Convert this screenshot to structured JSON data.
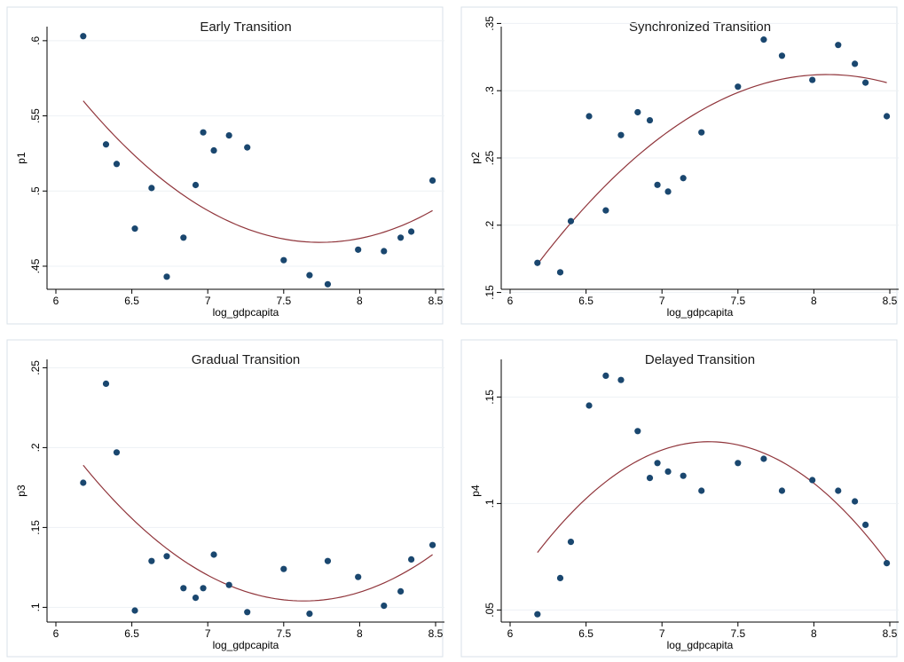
{
  "chart_data": [
    {
      "type": "scatter",
      "title": "Early Transition",
      "xlabel": "log_gdpcapita",
      "ylabel": "p1",
      "xlim": [
        6,
        8.5
      ],
      "ylim": [
        0.437,
        0.607
      ],
      "x_ticks": [
        6,
        6.5,
        7,
        7.5,
        8,
        8.5
      ],
      "x_tick_labels": [
        "6",
        "6.5",
        "7",
        "7.5",
        "8",
        "8.5"
      ],
      "y_ticks": [
        0.45,
        0.5,
        0.55,
        0.6
      ],
      "y_tick_labels": [
        ".45",
        ".5",
        ".55",
        ".6"
      ],
      "grid": true,
      "colors": {
        "points": "#1a476f",
        "fit": "#90353b"
      },
      "points": [
        {
          "x": 6.18,
          "y": 0.603
        },
        {
          "x": 6.33,
          "y": 0.531
        },
        {
          "x": 6.4,
          "y": 0.518
        },
        {
          "x": 6.52,
          "y": 0.475
        },
        {
          "x": 6.63,
          "y": 0.502
        },
        {
          "x": 6.73,
          "y": 0.443
        },
        {
          "x": 6.84,
          "y": 0.469
        },
        {
          "x": 6.92,
          "y": 0.504
        },
        {
          "x": 6.97,
          "y": 0.539
        },
        {
          "x": 7.04,
          "y": 0.527
        },
        {
          "x": 7.14,
          "y": 0.537
        },
        {
          "x": 7.26,
          "y": 0.529
        },
        {
          "x": 7.5,
          "y": 0.454
        },
        {
          "x": 7.67,
          "y": 0.444
        },
        {
          "x": 7.79,
          "y": 0.438
        },
        {
          "x": 7.99,
          "y": 0.461
        },
        {
          "x": 8.16,
          "y": 0.46
        },
        {
          "x": 8.27,
          "y": 0.469
        },
        {
          "x": 8.34,
          "y": 0.473
        },
        {
          "x": 8.48,
          "y": 0.507
        }
      ],
      "fit": [
        {
          "x": 6.18,
          "y": 0.56
        },
        {
          "x": 7.68,
          "y": 0.466
        },
        {
          "x": 8.48,
          "y": 0.487
        }
      ]
    },
    {
      "type": "scatter",
      "title": "Synchronized Transition",
      "xlabel": "log_gdpcapita",
      "ylabel": "p2",
      "xlim": [
        6,
        8.5
      ],
      "ylim": [
        0.155,
        0.345
      ],
      "x_ticks": [
        6,
        6.5,
        7,
        7.5,
        8,
        8.5
      ],
      "x_tick_labels": [
        "6",
        "6.5",
        "7",
        "7.5",
        "8",
        "8.5"
      ],
      "y_ticks": [
        0.15,
        0.2,
        0.25,
        0.3,
        0.35
      ],
      "y_tick_labels": [
        ".15",
        ".2",
        ".25",
        ".3",
        ".35"
      ],
      "grid": true,
      "colors": {
        "points": "#1a476f",
        "fit": "#90353b"
      },
      "points": [
        {
          "x": 6.18,
          "y": 0.172
        },
        {
          "x": 6.33,
          "y": 0.165
        },
        {
          "x": 6.4,
          "y": 0.203
        },
        {
          "x": 6.52,
          "y": 0.281
        },
        {
          "x": 6.63,
          "y": 0.211
        },
        {
          "x": 6.73,
          "y": 0.267
        },
        {
          "x": 6.84,
          "y": 0.284
        },
        {
          "x": 6.92,
          "y": 0.278
        },
        {
          "x": 6.97,
          "y": 0.23
        },
        {
          "x": 7.04,
          "y": 0.225
        },
        {
          "x": 7.14,
          "y": 0.235
        },
        {
          "x": 7.26,
          "y": 0.269
        },
        {
          "x": 7.5,
          "y": 0.303
        },
        {
          "x": 7.67,
          "y": 0.338
        },
        {
          "x": 7.79,
          "y": 0.326
        },
        {
          "x": 7.99,
          "y": 0.308
        },
        {
          "x": 8.16,
          "y": 0.334
        },
        {
          "x": 8.27,
          "y": 0.32
        },
        {
          "x": 8.34,
          "y": 0.306
        },
        {
          "x": 8.48,
          "y": 0.281
        }
      ],
      "fit": [
        {
          "x": 6.18,
          "y": 0.171
        },
        {
          "x": 8.08,
          "y": 0.312
        },
        {
          "x": 8.48,
          "y": 0.306
        }
      ]
    },
    {
      "type": "scatter",
      "title": "Gradual Transition",
      "xlabel": "log_gdpcapita",
      "ylabel": "p3",
      "xlim": [
        6,
        8.5
      ],
      "ylim": [
        0.093,
        0.253
      ],
      "x_ticks": [
        6,
        6.5,
        7,
        7.5,
        8,
        8.5
      ],
      "x_tick_labels": [
        "6",
        "6.5",
        "7",
        "7.5",
        "8",
        "8.5"
      ],
      "y_ticks": [
        0.1,
        0.15,
        0.2,
        0.25
      ],
      "y_tick_labels": [
        ".1",
        ".15",
        ".2",
        ".25"
      ],
      "grid": true,
      "colors": {
        "points": "#1a476f",
        "fit": "#90353b"
      },
      "points": [
        {
          "x": 6.18,
          "y": 0.178
        },
        {
          "x": 6.33,
          "y": 0.24
        },
        {
          "x": 6.4,
          "y": 0.197
        },
        {
          "x": 6.52,
          "y": 0.098
        },
        {
          "x": 6.63,
          "y": 0.129
        },
        {
          "x": 6.73,
          "y": 0.132
        },
        {
          "x": 6.84,
          "y": 0.112
        },
        {
          "x": 6.92,
          "y": 0.106
        },
        {
          "x": 6.97,
          "y": 0.112
        },
        {
          "x": 7.04,
          "y": 0.133
        },
        {
          "x": 7.14,
          "y": 0.114
        },
        {
          "x": 7.26,
          "y": 0.097
        },
        {
          "x": 7.5,
          "y": 0.124
        },
        {
          "x": 7.67,
          "y": 0.096
        },
        {
          "x": 7.79,
          "y": 0.129
        },
        {
          "x": 7.99,
          "y": 0.119
        },
        {
          "x": 8.16,
          "y": 0.101
        },
        {
          "x": 8.27,
          "y": 0.11
        },
        {
          "x": 8.34,
          "y": 0.13
        },
        {
          "x": 8.48,
          "y": 0.139
        }
      ],
      "fit": [
        {
          "x": 6.18,
          "y": 0.189
        },
        {
          "x": 7.63,
          "y": 0.104
        },
        {
          "x": 8.48,
          "y": 0.133
        }
      ]
    },
    {
      "type": "scatter",
      "title": "Delayed Transition",
      "xlabel": "log_gdpcapita",
      "ylabel": "p4",
      "xlim": [
        6,
        8.5
      ],
      "ylim": [
        0.046,
        0.166
      ],
      "x_ticks": [
        6,
        6.5,
        7,
        7.5,
        8,
        8.5
      ],
      "x_tick_labels": [
        "6",
        "6.5",
        "7",
        "7.5",
        "8",
        "8.5"
      ],
      "y_ticks": [
        0.05,
        0.1,
        0.15
      ],
      "y_tick_labels": [
        ".05",
        ".1",
        ".15"
      ],
      "grid": true,
      "colors": {
        "points": "#1a476f",
        "fit": "#90353b"
      },
      "points": [
        {
          "x": 6.18,
          "y": 0.048
        },
        {
          "x": 6.33,
          "y": 0.065
        },
        {
          "x": 6.4,
          "y": 0.082
        },
        {
          "x": 6.52,
          "y": 0.146
        },
        {
          "x": 6.63,
          "y": 0.16
        },
        {
          "x": 6.73,
          "y": 0.158
        },
        {
          "x": 6.84,
          "y": 0.134
        },
        {
          "x": 6.92,
          "y": 0.112
        },
        {
          "x": 6.97,
          "y": 0.119
        },
        {
          "x": 7.04,
          "y": 0.115
        },
        {
          "x": 7.14,
          "y": 0.113
        },
        {
          "x": 7.26,
          "y": 0.106
        },
        {
          "x": 7.5,
          "y": 0.119
        },
        {
          "x": 7.67,
          "y": 0.121
        },
        {
          "x": 7.79,
          "y": 0.106
        },
        {
          "x": 7.99,
          "y": 0.111
        },
        {
          "x": 8.16,
          "y": 0.106
        },
        {
          "x": 8.27,
          "y": 0.101
        },
        {
          "x": 8.34,
          "y": 0.09
        },
        {
          "x": 8.48,
          "y": 0.072
        }
      ],
      "fit": [
        {
          "x": 6.18,
          "y": 0.077
        },
        {
          "x": 7.33,
          "y": 0.129
        },
        {
          "x": 8.48,
          "y": 0.073
        }
      ]
    }
  ]
}
